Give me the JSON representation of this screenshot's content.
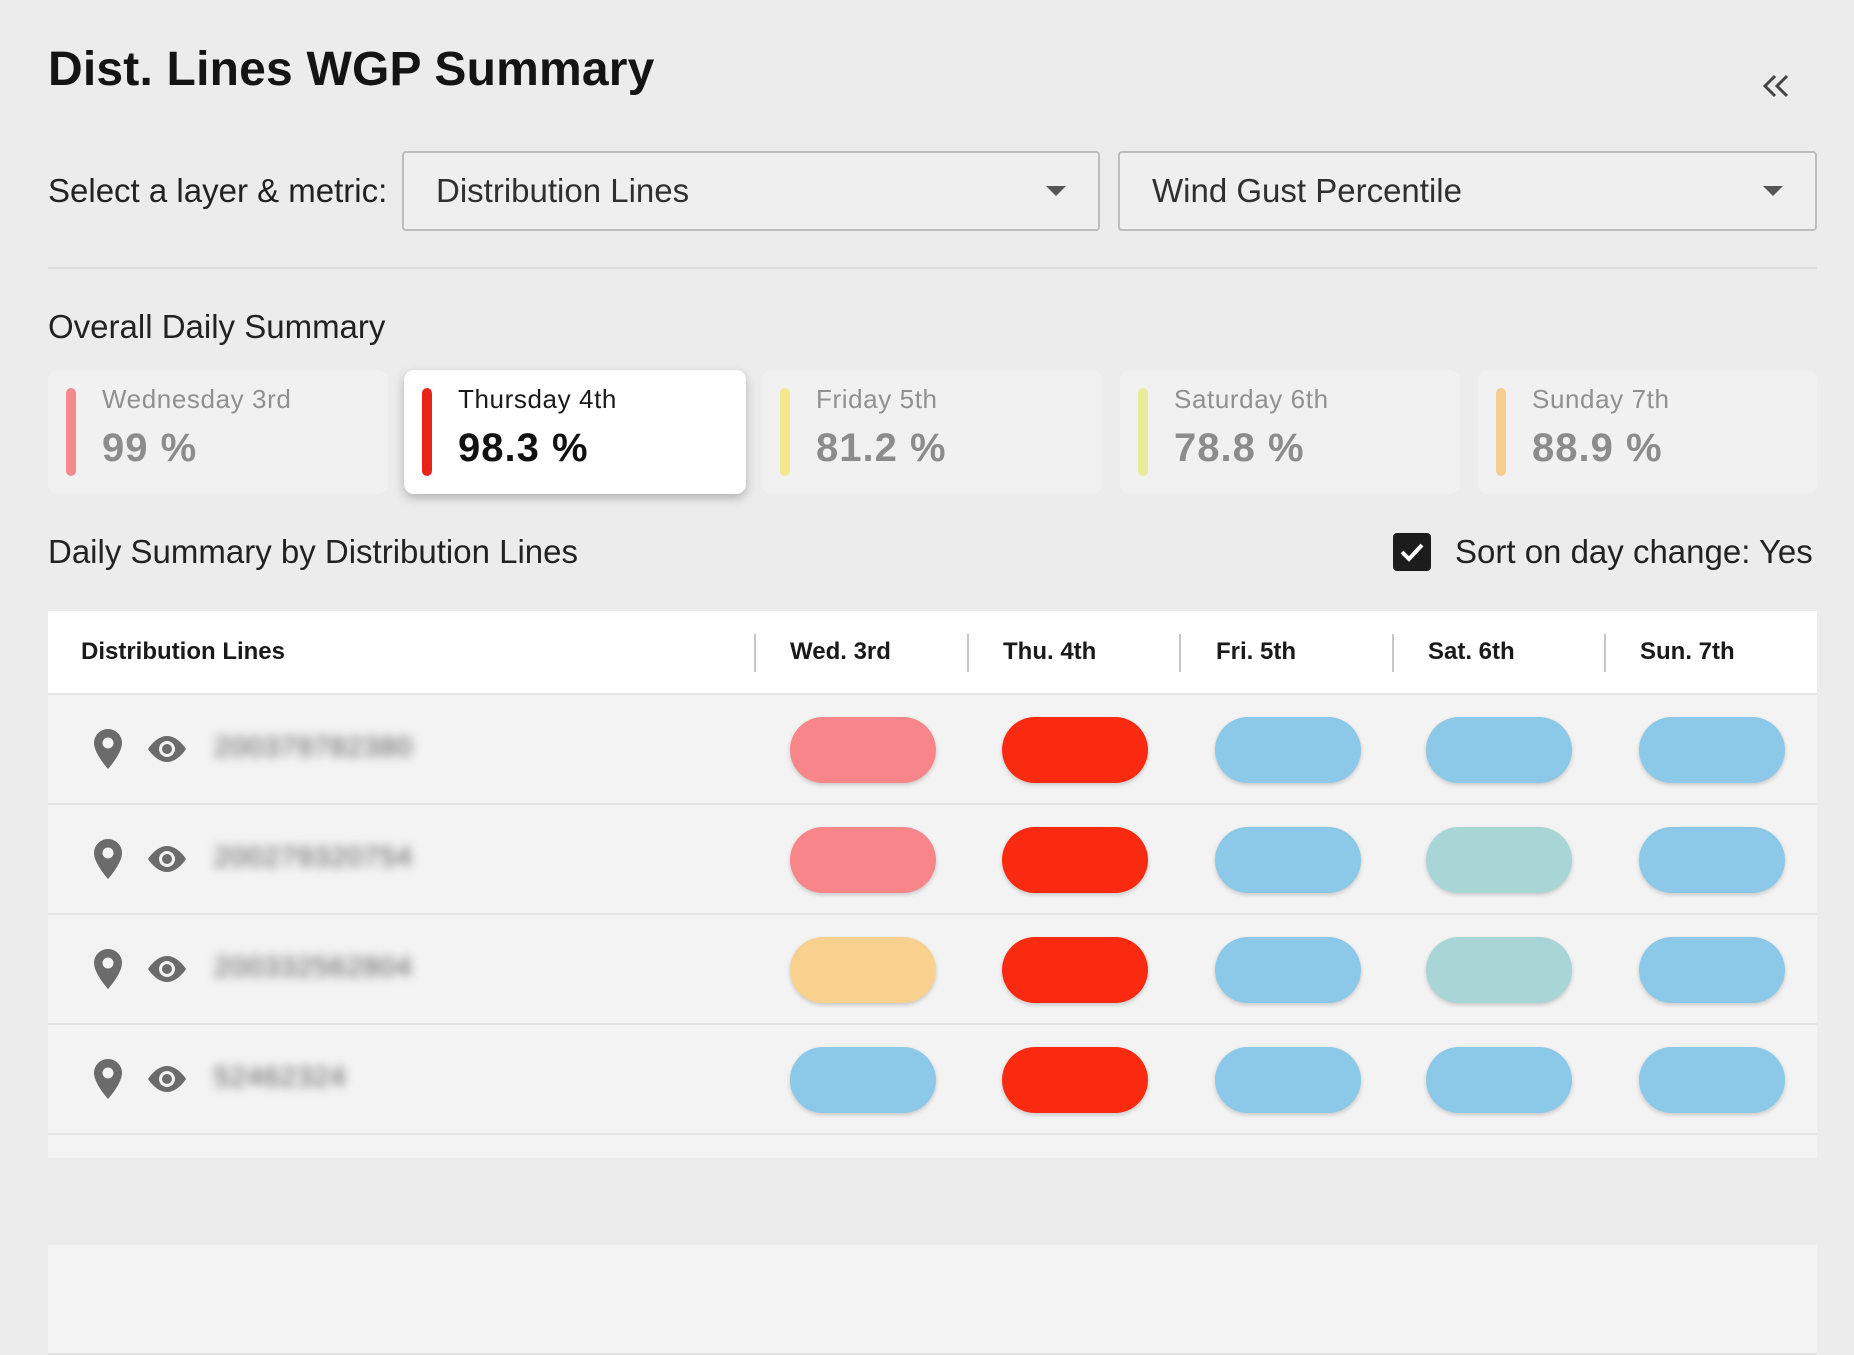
{
  "header": {
    "title": "Dist. Lines WGP Summary",
    "collapse_icon": "double-chevron-left-icon"
  },
  "selector": {
    "label": "Select a layer & metric:",
    "layer": "Distribution Lines",
    "metric": "Wind Gust Percentile"
  },
  "overall": {
    "title": "Overall Daily Summary",
    "days": [
      {
        "name": "Wednesday 3rd",
        "value": "99 %",
        "color": "#f28b8b",
        "active": false
      },
      {
        "name": "Thursday 4th",
        "value": "98.3 %",
        "color": "#e8231a",
        "active": true
      },
      {
        "name": "Friday 5th",
        "value": "81.2 %",
        "color": "#f3e98a",
        "active": false
      },
      {
        "name": "Saturday 6th",
        "value": "78.8 %",
        "color": "#e8ec9a",
        "active": false
      },
      {
        "name": "Sunday 7th",
        "value": "88.9 %",
        "color": "#f5cf8e",
        "active": false
      }
    ]
  },
  "by_lines": {
    "title": "Daily Summary by Distribution Lines",
    "sort_label": "Sort on day change: Yes",
    "sort_checked": true
  },
  "table": {
    "columns": [
      "Distribution Lines",
      "Wed. 3rd",
      "Thu. 4th",
      "Fri. 5th",
      "Sat. 6th",
      "Sun. 7th"
    ],
    "rows": [
      {
        "name": "200379782380",
        "cells": [
          "#f8858a",
          "#fa2a10",
          "#8cc8e8",
          "#8cc8e8",
          "#8cc8e8"
        ]
      },
      {
        "name": "200279320754",
        "cells": [
          "#f8858a",
          "#fa2a10",
          "#8cc8e8",
          "#a8d6d6",
          "#8cc8e8"
        ]
      },
      {
        "name": "200332562804",
        "cells": [
          "#f9d18e",
          "#fa2a10",
          "#8cc8e8",
          "#a8d6d6",
          "#8cc8e8"
        ]
      },
      {
        "name": "52462324",
        "cells": [
          "#8cc8e8",
          "#fa2a10",
          "#8cc8e8",
          "#8cc8e8",
          "#8cc8e8"
        ]
      }
    ]
  }
}
